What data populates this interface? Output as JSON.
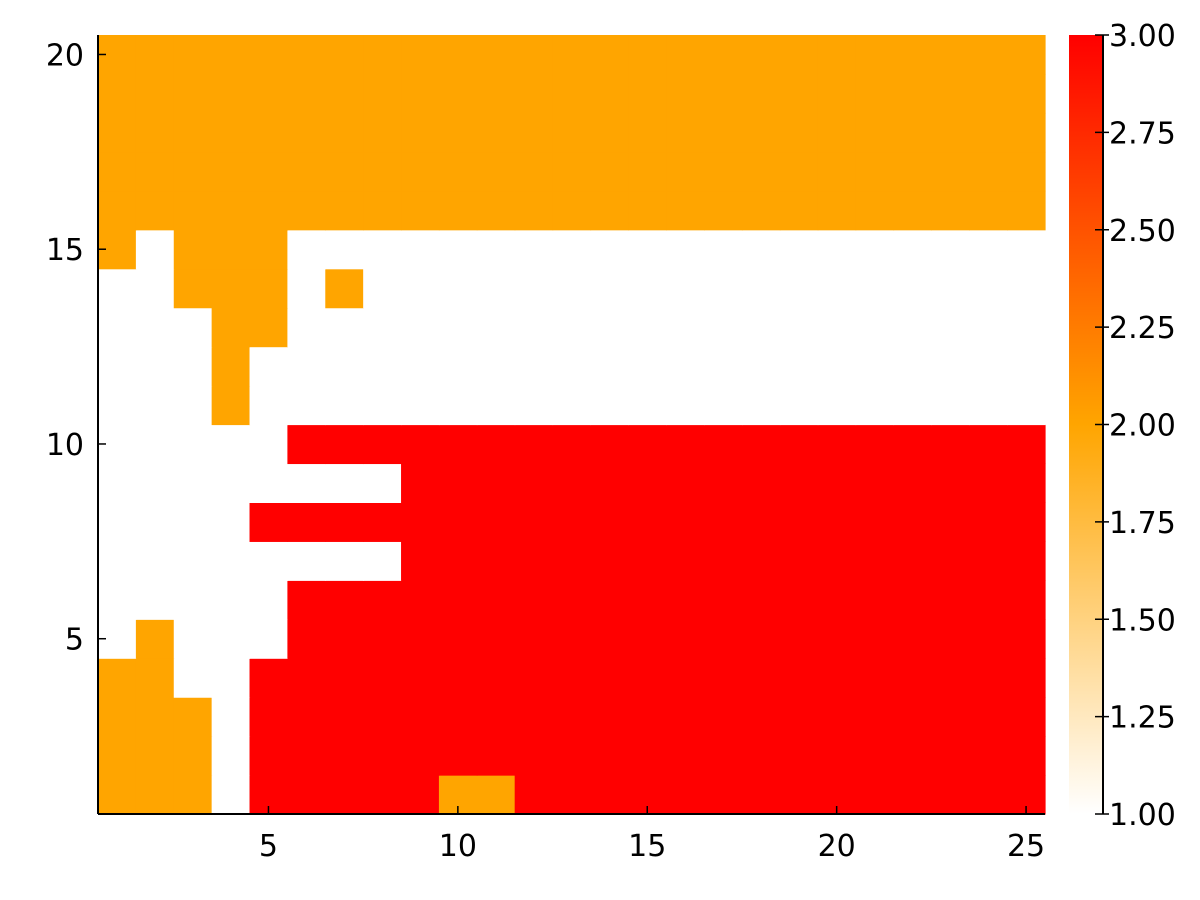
{
  "chart_data": {
    "type": "heatmap",
    "title": "",
    "xlabel": "",
    "ylabel": "",
    "x_range": [
      1,
      25
    ],
    "y_range": [
      1,
      20
    ],
    "xticks": [
      "5",
      "10",
      "15",
      "20",
      "25"
    ],
    "yticks": [
      "5",
      "10",
      "15",
      "20"
    ],
    "grid": false,
    "legend": "colorbar right",
    "colorbar": {
      "min": 1.0,
      "max": 3.0,
      "ticks": [
        "1.00",
        "1.25",
        "1.50",
        "1.75",
        "2.00",
        "2.25",
        "2.50",
        "2.75",
        "3.00"
      ],
      "colors": {
        "low": "#ffffff",
        "mid": "#ffa500",
        "high": "#ff0000"
      }
    },
    "values": [
      [
        2,
        2,
        2,
        1,
        3,
        3,
        3,
        3,
        3,
        2,
        2,
        3,
        3,
        3,
        3,
        3,
        3,
        3,
        3,
        3,
        3,
        3,
        3,
        3,
        3
      ],
      [
        2,
        2,
        2,
        1,
        3,
        3,
        3,
        3,
        3,
        3,
        3,
        3,
        3,
        3,
        3,
        3,
        3,
        3,
        3,
        3,
        3,
        3,
        3,
        3,
        3
      ],
      [
        2,
        2,
        2,
        1,
        3,
        3,
        3,
        3,
        3,
        3,
        3,
        3,
        3,
        3,
        3,
        3,
        3,
        3,
        3,
        3,
        3,
        3,
        3,
        3,
        3
      ],
      [
        2,
        2,
        1,
        1,
        3,
        3,
        3,
        3,
        3,
        3,
        3,
        3,
        3,
        3,
        3,
        3,
        3,
        3,
        3,
        3,
        3,
        3,
        3,
        3,
        3
      ],
      [
        1,
        2,
        1,
        1,
        1,
        3,
        3,
        3,
        3,
        3,
        3,
        3,
        3,
        3,
        3,
        3,
        3,
        3,
        3,
        3,
        3,
        3,
        3,
        3,
        3
      ],
      [
        1,
        1,
        1,
        1,
        1,
        3,
        3,
        3,
        3,
        3,
        3,
        3,
        3,
        3,
        3,
        3,
        3,
        3,
        3,
        3,
        3,
        3,
        3,
        3,
        3
      ],
      [
        1,
        1,
        1,
        1,
        1,
        1,
        1,
        1,
        3,
        3,
        3,
        3,
        3,
        3,
        3,
        3,
        3,
        3,
        3,
        3,
        3,
        3,
        3,
        3,
        3
      ],
      [
        1,
        1,
        1,
        1,
        3,
        3,
        3,
        3,
        3,
        3,
        3,
        3,
        3,
        3,
        3,
        3,
        3,
        3,
        3,
        3,
        3,
        3,
        3,
        3,
        3
      ],
      [
        1,
        1,
        1,
        1,
        1,
        1,
        1,
        1,
        3,
        3,
        3,
        3,
        3,
        3,
        3,
        3,
        3,
        3,
        3,
        3,
        3,
        3,
        3,
        3,
        3
      ],
      [
        1,
        1,
        1,
        1,
        1,
        3,
        3,
        3,
        3,
        3,
        3,
        3,
        3,
        3,
        3,
        3,
        3,
        3,
        3,
        3,
        3,
        3,
        3,
        3,
        3
      ],
      [
        1,
        1,
        1,
        2,
        1,
        1,
        1,
        1,
        1,
        1,
        1,
        1,
        1,
        1,
        1,
        1,
        1,
        1,
        1,
        1,
        1,
        1,
        1,
        1,
        1
      ],
      [
        1,
        1,
        1,
        2,
        1,
        1,
        1,
        1,
        1,
        1,
        1,
        1,
        1,
        1,
        1,
        1,
        1,
        1,
        1,
        1,
        1,
        1,
        1,
        1,
        1
      ],
      [
        1,
        1,
        1,
        2,
        2,
        1,
        1,
        1,
        1,
        1,
        1,
        1,
        1,
        1,
        1,
        1,
        1,
        1,
        1,
        1,
        1,
        1,
        1,
        1,
        1
      ],
      [
        1,
        1,
        2,
        2,
        2,
        1,
        2,
        1,
        1,
        1,
        1,
        1,
        1,
        1,
        1,
        1,
        1,
        1,
        1,
        1,
        1,
        1,
        1,
        1,
        1
      ],
      [
        2,
        1,
        2,
        2,
        2,
        1,
        1,
        1,
        1,
        1,
        1,
        1,
        1,
        1,
        1,
        1,
        1,
        1,
        1,
        1,
        1,
        1,
        1,
        1,
        1
      ],
      [
        2,
        2,
        2,
        2,
        2,
        2,
        2,
        2,
        2,
        2,
        2,
        2,
        2,
        2,
        2,
        2,
        2,
        2,
        2,
        2,
        2,
        2,
        2,
        2,
        2
      ],
      [
        2,
        2,
        2,
        2,
        2,
        2,
        2,
        2,
        2,
        2,
        2,
        2,
        2,
        2,
        2,
        2,
        2,
        2,
        2,
        2,
        2,
        2,
        2,
        2,
        2
      ],
      [
        2,
        2,
        2,
        2,
        2,
        2,
        2,
        2,
        2,
        2,
        2,
        2,
        2,
        2,
        2,
        2,
        2,
        2,
        2,
        2,
        2,
        2,
        2,
        2,
        2
      ],
      [
        2,
        2,
        2,
        2,
        2,
        2,
        2,
        2,
        2,
        2,
        2,
        2,
        2,
        2,
        2,
        2,
        2,
        2,
        2,
        2,
        2,
        2,
        2,
        2,
        2
      ],
      [
        2,
        2,
        2,
        2,
        2,
        2,
        2,
        2,
        2,
        2,
        2,
        2,
        2,
        2,
        2,
        2,
        2,
        2,
        2,
        2,
        2,
        2,
        2,
        2,
        2
      ]
    ]
  }
}
